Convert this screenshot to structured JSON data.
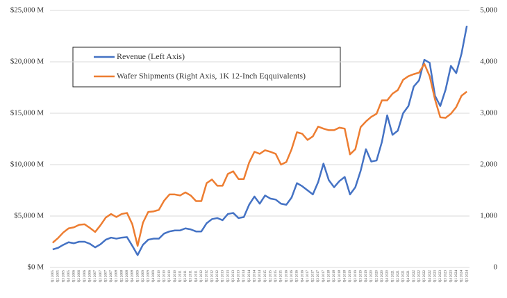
{
  "chart_data": {
    "type": "line",
    "categories": [
      "Q1 2005",
      "Q2 2005",
      "Q3 2005",
      "Q4 2005",
      "Q1 2006",
      "Q2 2006",
      "Q3 2006",
      "Q4 2006",
      "Q1 2007",
      "Q2 2007",
      "Q3 2007",
      "Q4 2007",
      "Q1 2008",
      "Q2 2008",
      "Q3 2008",
      "Q4 2008",
      "Q1 2009",
      "Q2 2009",
      "Q3 2009",
      "Q4 2009",
      "Q1 2010",
      "Q2 2010",
      "Q3 2010",
      "Q4 2010",
      "Q1 2011",
      "Q2 2011",
      "Q3 2011",
      "Q4 2011",
      "Q1 2012",
      "Q2 2012",
      "Q3 2012",
      "Q4 2012",
      "Q1 2013",
      "Q2 2013",
      "Q3 2013",
      "Q4 2013",
      "Q1 2014",
      "Q2 2014",
      "Q3 2014",
      "Q4 2014",
      "Q1 2015",
      "Q2 2015",
      "Q3 2015",
      "Q4 2015",
      "Q1 2016",
      "Q2 2016",
      "Q3 2016",
      "Q4 2016",
      "Q1 2017",
      "Q2 2017",
      "Q3 2017",
      "Q4 2017",
      "Q1 2018",
      "Q2 2018",
      "Q3 2018",
      "Q4 2018",
      "Q1 2019",
      "Q2 2019",
      "Q3 2019",
      "Q4 2019",
      "Q1 2020",
      "Q2 2020",
      "Q3 2020",
      "Q4 2020",
      "Q1 2021",
      "Q2 2021",
      "Q3 2021",
      "Q4 2021",
      "Q1 2022",
      "Q2 2022",
      "Q3 2022",
      "Q4 2022",
      "Q1 2023",
      "Q2 2023",
      "Q3 2023",
      "Q4 2023",
      "Q1 2024",
      "Q2 2024",
      "Q3 2024"
    ],
    "series": [
      {
        "name": "Revenue (Left Axis)",
        "color": "#4472c4",
        "axis": "y",
        "values": [
          1750,
          1900,
          2200,
          2450,
          2350,
          2500,
          2500,
          2300,
          1950,
          2250,
          2700,
          2900,
          2800,
          2900,
          2950,
          2100,
          1200,
          2200,
          2700,
          2800,
          2800,
          3300,
          3500,
          3600,
          3600,
          3800,
          3700,
          3500,
          3500,
          4300,
          4700,
          4800,
          4600,
          5200,
          5300,
          4800,
          4900,
          6100,
          6900,
          6200,
          7000,
          6700,
          6600,
          6200,
          6100,
          6800,
          8200,
          7900,
          7500,
          7100,
          8300,
          10100,
          8500,
          7800,
          8400,
          8800,
          7100,
          7800,
          9400,
          11500,
          10300,
          10400,
          12200,
          14800,
          12900,
          13300,
          15000,
          15700,
          17600,
          18200,
          20200,
          19900,
          16700,
          15700,
          17300,
          19600,
          18900,
          20800,
          23500
        ]
      },
      {
        "name": "Wafer Shipments (Right Axis, 1K 12-Inch Eqquivalents)",
        "color": "#ed7d31",
        "axis": "y2",
        "values": [
          480,
          570,
          680,
          760,
          780,
          830,
          840,
          770,
          690,
          820,
          970,
          1040,
          980,
          1040,
          1060,
          840,
          420,
          870,
          1080,
          1090,
          1120,
          1300,
          1420,
          1420,
          1400,
          1460,
          1400,
          1290,
          1290,
          1640,
          1710,
          1590,
          1590,
          1820,
          1870,
          1720,
          1720,
          2040,
          2250,
          2210,
          2280,
          2250,
          2210,
          2000,
          2050,
          2300,
          2630,
          2600,
          2480,
          2550,
          2740,
          2700,
          2670,
          2670,
          2720,
          2700,
          2200,
          2300,
          2730,
          2840,
          2930,
          2990,
          3250,
          3250,
          3380,
          3450,
          3650,
          3720,
          3760,
          3790,
          3960,
          3720,
          3270,
          2920,
          2910,
          2990,
          3120,
          3340,
          3420
        ]
      }
    ],
    "ylim": [
      0,
      25000
    ],
    "yticks": [
      {
        "value": 0,
        "label": "$0 M"
      },
      {
        "value": 5000,
        "label": "$5,000 M"
      },
      {
        "value": 10000,
        "label": "$10,000 M"
      },
      {
        "value": 15000,
        "label": "$15,000 M"
      },
      {
        "value": 20000,
        "label": "$20,000 M"
      },
      {
        "value": 25000,
        "label": "$25,000 M"
      }
    ],
    "y2lim": [
      0,
      5000
    ],
    "y2ticks": [
      0,
      {
        "value": 1000,
        "label": "1,000"
      },
      {
        "value": 2000,
        "label": "2,000"
      },
      {
        "value": 3000,
        "label": "3,000"
      },
      {
        "value": 4000,
        "label": "4,000"
      },
      {
        "value": 5000,
        "label": "5,000"
      }
    ],
    "grid": true
  }
}
